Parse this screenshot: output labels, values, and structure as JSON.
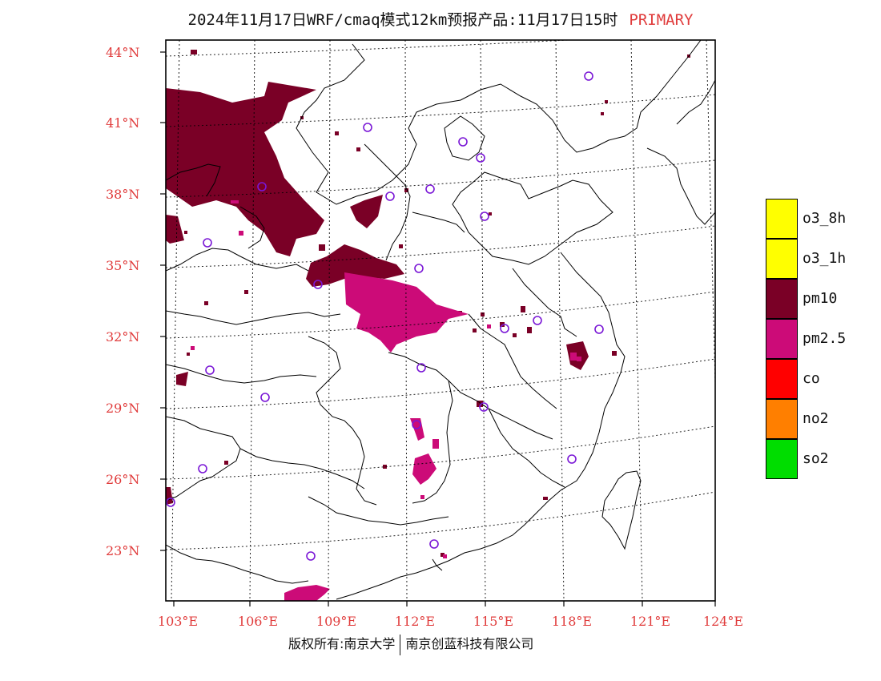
{
  "title": {
    "main": "2024年11月17日WRF/cmaq模式12km预报产品:11月17日15时",
    "tag": "PRIMARY"
  },
  "axes": {
    "lat_labels": [
      "44°N",
      "41°N",
      "38°N",
      "35°N",
      "32°N",
      "29°N",
      "26°N",
      "23°N"
    ],
    "lon_labels": [
      "103°E",
      "106°E",
      "109°E",
      "112°E",
      "115°E",
      "118°E",
      "121°E",
      "124°E"
    ]
  },
  "legend": [
    {
      "label": "o3_8h",
      "color": "#ffff00"
    },
    {
      "label": "o3_1h",
      "color": "#ffff00"
    },
    {
      "label": "pm10",
      "color": "#7a0026"
    },
    {
      "label": "pm2.5",
      "color": "#cc0b78"
    },
    {
      "label": "co",
      "color": "#ff0000"
    },
    {
      "label": "no2",
      "color": "#ff7f00"
    },
    {
      "label": "so2",
      "color": "#00dd00"
    }
  ],
  "footer": {
    "left": "版权所有:南京大学",
    "right": "南京创蓝科技有限公司"
  },
  "colors": {
    "pm10": "#7a0026",
    "pm25": "#cc0b78",
    "station": "#7a17d6",
    "label": "#e03b3b"
  }
}
